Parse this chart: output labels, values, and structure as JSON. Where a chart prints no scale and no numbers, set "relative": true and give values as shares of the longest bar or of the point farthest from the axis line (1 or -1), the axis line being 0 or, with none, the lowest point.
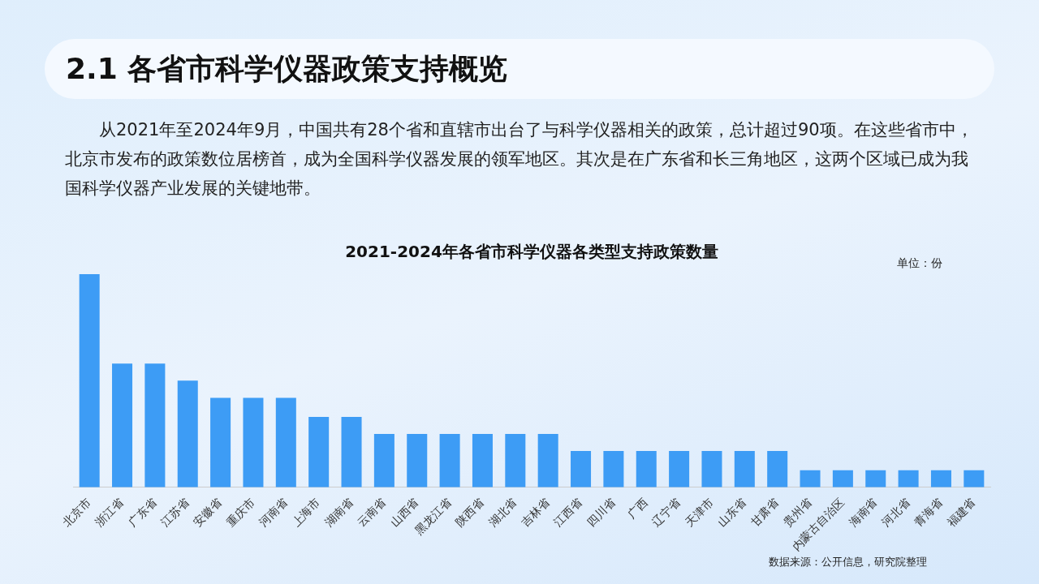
{
  "chart_data": {
    "type": "bar",
    "relative": true,
    "title": "2021-2024年各省市科学仪器各类型支持政策数量",
    "categories": [
      "北京市",
      "浙江省",
      "广东省",
      "江苏省",
      "安徽省",
      "重庆市",
      "河南省",
      "上海市",
      "湖南省",
      "云南省",
      "山西省",
      "黑龙江省",
      "陕西省",
      "湖北省",
      "吉林省",
      "江西省",
      "四川省",
      "广西",
      "辽宁省",
      "天津市",
      "山东省",
      "甘肃省",
      "贵州省",
      "内蒙古自治区",
      "海南省",
      "河北省",
      "青海省",
      "福建省"
    ],
    "values": [
      1,
      0.58,
      0.58,
      0.5,
      0.42,
      0.42,
      0.42,
      0.33,
      0.33,
      0.25,
      0.25,
      0.25,
      0.25,
      0.25,
      0.25,
      0.17,
      0.17,
      0.17,
      0.17,
      0.17,
      0.17,
      0.17,
      0.08,
      0.08,
      0.08,
      0.08,
      0.08,
      0.08
    ],
    "color": "#3d9cf5",
    "annotations": [
      "2.1 各省市科学仪器政策支持概览",
      "从2021年至2024年9月，中国共有28个省和直辖市出台了与科学仪器相关的政策，总计超过90项。在这些省市中，北京市发布的政策数位居榜首，成为全国科学仪器发展的领军地区。其次是在广东省和长三角地区，这两个区域已成为我国科学仪器产业发展的关键地带。",
      "单位：份",
      "数据来源：公开信息，研究院整理"
    ]
  }
}
